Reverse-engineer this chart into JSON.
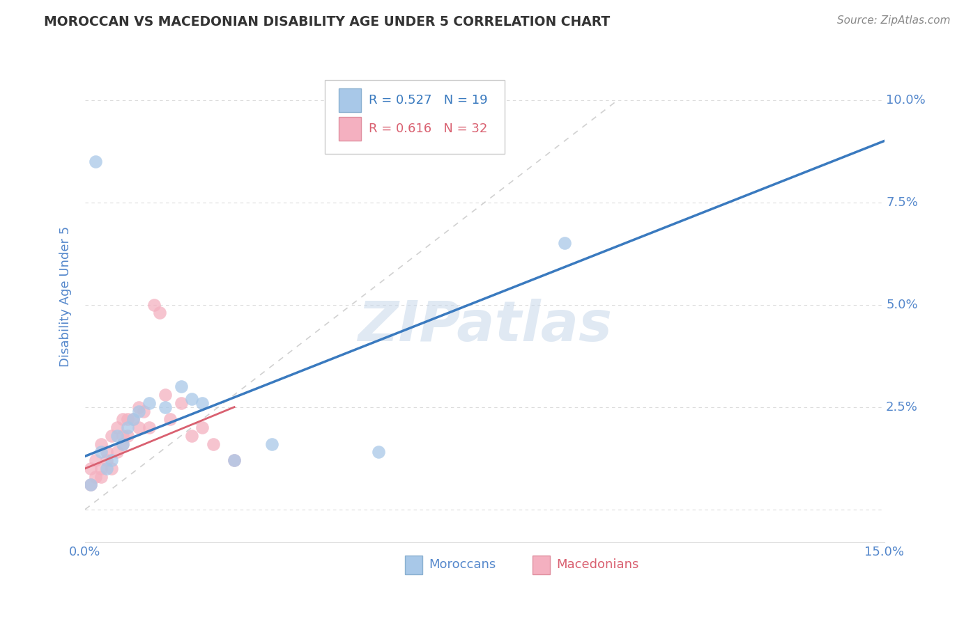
{
  "title": "MOROCCAN VS MACEDONIAN DISABILITY AGE UNDER 5 CORRELATION CHART",
  "source": "Source: ZipAtlas.com",
  "ylabel": "Disability Age Under 5",
  "xlim": [
    0.0,
    0.15
  ],
  "ylim": [
    -0.008,
    0.112
  ],
  "moroccan_x": [
    0.001,
    0.002,
    0.003,
    0.004,
    0.005,
    0.006,
    0.007,
    0.008,
    0.009,
    0.01,
    0.012,
    0.015,
    0.02,
    0.022,
    0.028,
    0.035,
    0.055,
    0.09,
    0.018
  ],
  "moroccan_y": [
    0.006,
    0.085,
    0.014,
    0.01,
    0.012,
    0.018,
    0.016,
    0.02,
    0.022,
    0.024,
    0.026,
    0.025,
    0.027,
    0.026,
    0.012,
    0.016,
    0.014,
    0.065,
    0.03
  ],
  "macedonian_x": [
    0.001,
    0.001,
    0.002,
    0.002,
    0.003,
    0.003,
    0.003,
    0.004,
    0.004,
    0.005,
    0.005,
    0.006,
    0.006,
    0.007,
    0.007,
    0.007,
    0.008,
    0.008,
    0.009,
    0.01,
    0.01,
    0.011,
    0.012,
    0.013,
    0.014,
    0.015,
    0.016,
    0.018,
    0.02,
    0.022,
    0.024,
    0.028
  ],
  "macedonian_y": [
    0.006,
    0.01,
    0.008,
    0.012,
    0.008,
    0.01,
    0.016,
    0.012,
    0.014,
    0.01,
    0.018,
    0.014,
    0.02,
    0.016,
    0.018,
    0.022,
    0.018,
    0.022,
    0.022,
    0.02,
    0.025,
    0.024,
    0.02,
    0.05,
    0.048,
    0.028,
    0.022,
    0.026,
    0.018,
    0.02,
    0.016,
    0.012
  ],
  "moroccan_line_x0": 0.0,
  "moroccan_line_y0": 0.013,
  "moroccan_line_x1": 0.15,
  "moroccan_line_y1": 0.09,
  "macedonian_line_x0": 0.0,
  "macedonian_line_y0": 0.01,
  "macedonian_line_x1": 0.028,
  "macedonian_line_y1": 0.025,
  "ref_line_x0": 0.0,
  "ref_line_y0": 0.0,
  "ref_line_x1": 0.1,
  "ref_line_y1": 0.1,
  "moroccan_R": 0.527,
  "moroccan_N": 19,
  "macedonian_R": 0.616,
  "macedonian_N": 32,
  "moroccan_color": "#a8c8e8",
  "macedonian_color": "#f4b0c0",
  "moroccan_line_color": "#3a7abf",
  "macedonian_line_color": "#d96070",
  "ref_line_color": "#cccccc",
  "legend_label_moroccan": "Moroccans",
  "legend_label_macedonian": "Macedonians",
  "background_color": "#ffffff",
  "grid_color": "#cccccc",
  "watermark_text": "ZIPatlas",
  "title_color": "#333333",
  "axis_label_color": "#5588cc",
  "tick_color": "#5588cc",
  "source_color": "#888888"
}
